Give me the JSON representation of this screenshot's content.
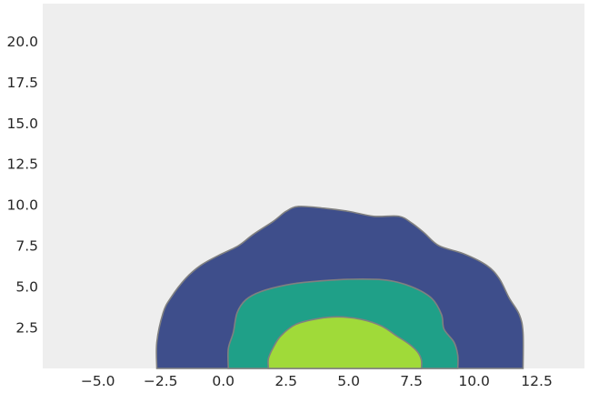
{
  "chart_data": {
    "type": "contour",
    "title": "",
    "xlabel": "",
    "ylabel": "",
    "xlim": [
      -7.2,
      14.4
    ],
    "ylim": [
      0,
      22.3
    ],
    "grid": false,
    "x_ticks": [
      -5.0,
      -2.5,
      0.0,
      2.5,
      5.0,
      7.5,
      10.0,
      12.5
    ],
    "x_tick_labels": [
      "−5.0",
      "−2.5",
      "0.0",
      "2.5",
      "5.0",
      "7.5",
      "10.0",
      "12.5"
    ],
    "y_ticks": [
      2.5,
      5.0,
      7.5,
      10.0,
      12.5,
      15.0,
      17.5,
      20.0
    ],
    "y_tick_labels": [
      "2.5",
      "5.0",
      "7.5",
      "10.0",
      "12.5",
      "15.0",
      "17.5",
      "20.0"
    ],
    "colors": {
      "background": "#eeeeee",
      "outline": "#808080",
      "levels": [
        "#3e4e8b",
        "#1fa088",
        "#a0da39"
      ]
    },
    "levels": [
      {
        "level": 1,
        "outline": [
          [
            -2.65,
            0
          ],
          [
            -2.65,
            1.6
          ],
          [
            -2.4,
            3.4
          ],
          [
            -2.1,
            4.3
          ],
          [
            -1.5,
            5.5
          ],
          [
            -0.9,
            6.3
          ],
          [
            -0.2,
            6.9
          ],
          [
            0.6,
            7.5
          ],
          [
            1.2,
            8.2
          ],
          [
            2.0,
            9.0
          ],
          [
            2.5,
            9.6
          ],
          [
            3.0,
            9.9
          ],
          [
            4.0,
            9.8
          ],
          [
            5.0,
            9.6
          ],
          [
            6.0,
            9.3
          ],
          [
            7.0,
            9.3
          ],
          [
            7.5,
            8.9
          ],
          [
            8.0,
            8.3
          ],
          [
            8.6,
            7.5
          ],
          [
            9.6,
            7.0
          ],
          [
            10.5,
            6.3
          ],
          [
            11.0,
            5.5
          ],
          [
            11.4,
            4.3
          ],
          [
            11.8,
            3.3
          ],
          [
            11.95,
            2.2
          ],
          [
            11.95,
            0
          ]
        ]
      },
      {
        "level": 2,
        "outline": [
          [
            0.2,
            0
          ],
          [
            0.2,
            1.2
          ],
          [
            0.4,
            2.2
          ],
          [
            0.55,
            3.4
          ],
          [
            0.9,
            4.2
          ],
          [
            1.5,
            4.7
          ],
          [
            2.5,
            5.1
          ],
          [
            3.5,
            5.3
          ],
          [
            5.0,
            5.45
          ],
          [
            6.5,
            5.4
          ],
          [
            7.5,
            5.0
          ],
          [
            8.3,
            4.3
          ],
          [
            8.7,
            3.3
          ],
          [
            8.8,
            2.4
          ],
          [
            9.2,
            1.6
          ],
          [
            9.35,
            0.8
          ],
          [
            9.35,
            0
          ]
        ]
      },
      {
        "level": 3,
        "outline": [
          [
            1.8,
            0
          ],
          [
            1.8,
            0.6
          ],
          [
            2.0,
            1.3
          ],
          [
            2.3,
            2.0
          ],
          [
            2.9,
            2.7
          ],
          [
            3.8,
            3.05
          ],
          [
            4.6,
            3.15
          ],
          [
            5.5,
            3.0
          ],
          [
            6.3,
            2.6
          ],
          [
            6.9,
            2.0
          ],
          [
            7.4,
            1.5
          ],
          [
            7.75,
            1.0
          ],
          [
            7.9,
            0.5
          ],
          [
            7.9,
            0
          ]
        ]
      }
    ]
  }
}
